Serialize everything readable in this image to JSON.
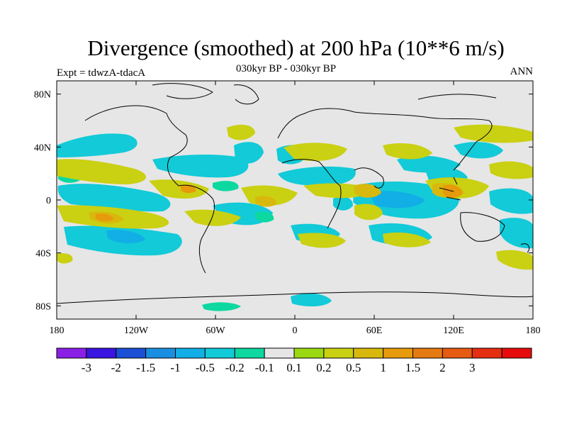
{
  "header": {
    "title": "Divergence (smoothed) at 200 hPa (10**6 m/s)",
    "subtitle": "030kyr BP - 030kyr BP",
    "left_label": "Expt = tdwzA-tdacA",
    "right_label": "ANN"
  },
  "map": {
    "projection": "cylindrical-equidistant",
    "background_color": "#e6e6e6",
    "coastline_color": "#000000",
    "lat_ticks": [
      {
        "value": 80,
        "label": "80N"
      },
      {
        "value": 40,
        "label": "40N"
      },
      {
        "value": 0,
        "label": "0"
      },
      {
        "value": -40,
        "label": "40S"
      },
      {
        "value": -80,
        "label": "80S"
      }
    ],
    "lon_ticks": [
      {
        "value": -180,
        "label": "180"
      },
      {
        "value": -120,
        "label": "120W"
      },
      {
        "value": -60,
        "label": "60W"
      },
      {
        "value": 0,
        "label": "0"
      },
      {
        "value": 60,
        "label": "60E"
      },
      {
        "value": 120,
        "label": "120E"
      },
      {
        "value": 180,
        "label": "180"
      }
    ]
  },
  "colorbar": {
    "colors": [
      "#8a1fe6",
      "#3a14e0",
      "#1a4fd6",
      "#1a8ee0",
      "#12aee6",
      "#12cad8",
      "#0cd8a0",
      "#e6e6e6",
      "#9ad812",
      "#cad012",
      "#d8b80c",
      "#e69a0c",
      "#e67a12",
      "#e65a12",
      "#e62e12",
      "#e60c0c"
    ],
    "labels": [
      "-3",
      "-2",
      "-1.5",
      "-1",
      "-0.5",
      "-0.2",
      "-0.1",
      "0.1",
      "0.2",
      "0.5",
      "1",
      "1.5",
      "2",
      "3"
    ]
  }
}
